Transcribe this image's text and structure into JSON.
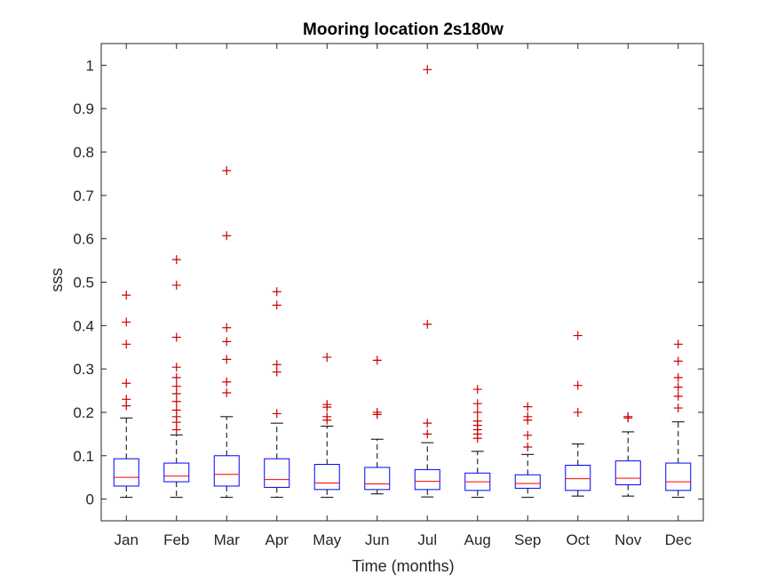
{
  "chart_data": {
    "type": "box",
    "title": "Mooring location 2s180w",
    "xlabel": "Time (months)",
    "ylabel": "sss",
    "ylim": [
      -0.05,
      1.05
    ],
    "yticks": [
      0,
      0.1,
      0.2,
      0.3,
      0.4,
      0.5,
      0.6,
      0.7,
      0.8,
      0.9,
      1
    ],
    "ytick_labels": [
      "0",
      "0.1",
      "0.2",
      "0.3",
      "0.4",
      "0.5",
      "0.6",
      "0.7",
      "0.8",
      "0.9",
      "1"
    ],
    "categories": [
      "Jan",
      "Feb",
      "Mar",
      "Apr",
      "May",
      "Jun",
      "Jul",
      "Aug",
      "Sep",
      "Oct",
      "Nov",
      "Dec"
    ],
    "colors": {
      "box": "#0000ff",
      "median": "#ff0000",
      "whisker": "#000000",
      "outlier": "#cc0000",
      "axis": "#262626"
    },
    "boxes": [
      {
        "q1": 0.03,
        "median": 0.05,
        "q3": 0.093,
        "whisker_low": 0.004,
        "whisker_high": 0.187,
        "outliers": [
          0.47,
          0.408,
          0.357,
          0.267,
          0.23,
          0.215
        ]
      },
      {
        "q1": 0.04,
        "median": 0.053,
        "q3": 0.083,
        "whisker_low": 0.004,
        "whisker_high": 0.148,
        "outliers": [
          0.552,
          0.493,
          0.373,
          0.304,
          0.28,
          0.26,
          0.243,
          0.225,
          0.205,
          0.19,
          0.177,
          0.16
        ]
      },
      {
        "q1": 0.03,
        "median": 0.057,
        "q3": 0.1,
        "whisker_low": 0.004,
        "whisker_high": 0.19,
        "outliers": [
          0.757,
          0.607,
          0.395,
          0.363,
          0.322,
          0.27,
          0.245
        ]
      },
      {
        "q1": 0.027,
        "median": 0.045,
        "q3": 0.093,
        "whisker_low": 0.004,
        "whisker_high": 0.175,
        "outliers": [
          0.478,
          0.447,
          0.31,
          0.293,
          0.197
        ]
      },
      {
        "q1": 0.022,
        "median": 0.037,
        "q3": 0.08,
        "whisker_low": 0.004,
        "whisker_high": 0.168,
        "outliers": [
          0.327,
          0.218,
          0.212,
          0.19,
          0.182
        ]
      },
      {
        "q1": 0.022,
        "median": 0.035,
        "q3": 0.073,
        "whisker_low": 0.012,
        "whisker_high": 0.138,
        "outliers": [
          0.32,
          0.2,
          0.195
        ]
      },
      {
        "q1": 0.022,
        "median": 0.041,
        "q3": 0.068,
        "whisker_low": 0.005,
        "whisker_high": 0.13,
        "outliers": [
          0.99,
          0.403,
          0.175,
          0.15
        ]
      },
      {
        "q1": 0.02,
        "median": 0.04,
        "q3": 0.06,
        "whisker_low": 0.004,
        "whisker_high": 0.11,
        "outliers": [
          0.253,
          0.22,
          0.2,
          0.18,
          0.17,
          0.16,
          0.15,
          0.14
        ]
      },
      {
        "q1": 0.025,
        "median": 0.036,
        "q3": 0.056,
        "whisker_low": 0.004,
        "whisker_high": 0.103,
        "outliers": [
          0.213,
          0.19,
          0.182,
          0.147,
          0.12
        ]
      },
      {
        "q1": 0.02,
        "median": 0.047,
        "q3": 0.078,
        "whisker_low": 0.007,
        "whisker_high": 0.127,
        "outliers": [
          0.377,
          0.262,
          0.2
        ]
      },
      {
        "q1": 0.033,
        "median": 0.048,
        "q3": 0.088,
        "whisker_low": 0.007,
        "whisker_high": 0.155,
        "outliers": [
          0.19,
          0.187
        ]
      },
      {
        "q1": 0.02,
        "median": 0.04,
        "q3": 0.083,
        "whisker_low": 0.004,
        "whisker_high": 0.178,
        "outliers": [
          0.357,
          0.318,
          0.28,
          0.258,
          0.237,
          0.21
        ]
      }
    ]
  }
}
